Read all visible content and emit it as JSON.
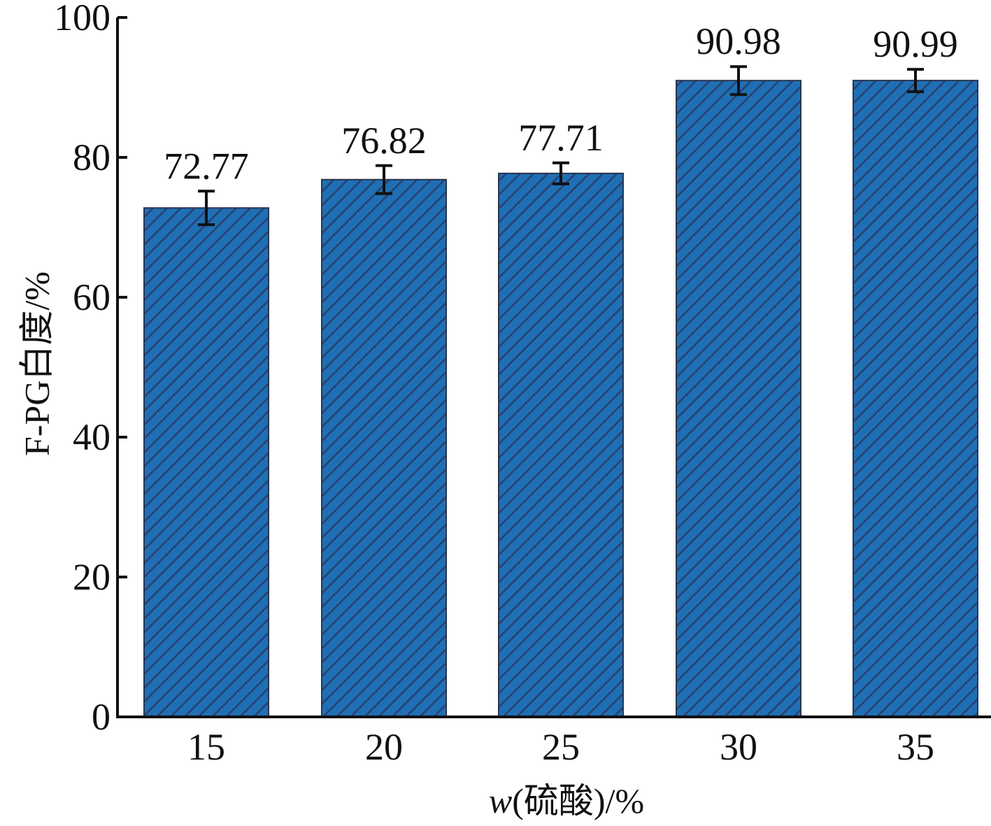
{
  "chart_data": {
    "type": "bar",
    "categories": [
      "15",
      "20",
      "25",
      "30",
      "35"
    ],
    "values": [
      72.77,
      76.82,
      77.71,
      90.98,
      90.99
    ],
    "error": [
      2.4,
      2.0,
      1.5,
      2.0,
      1.6
    ],
    "data_labels": [
      "72.77",
      "76.82",
      "77.71",
      "90.98",
      "90.99"
    ],
    "xlabel_italic": "w",
    "xlabel_rest": "(硫酸)/%",
    "ylabel": "F-PG白度/%",
    "ylim": [
      0,
      100
    ],
    "yticks": [
      0,
      20,
      40,
      60,
      80,
      100
    ],
    "bar_color": "#1f6fb4",
    "hatch_color": "#2a3f6e",
    "grid": false
  }
}
